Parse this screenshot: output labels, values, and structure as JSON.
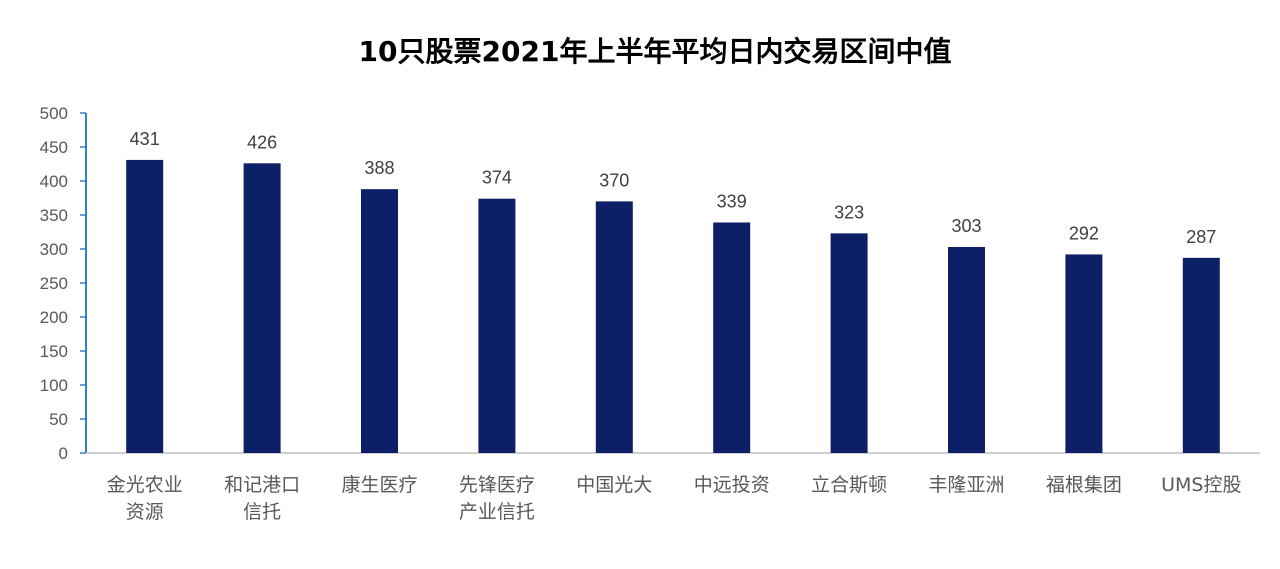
{
  "chart_data": {
    "type": "bar",
    "title": "10只股票2021年上半年平均日内交易区间中值",
    "xlabel": "",
    "ylabel": "",
    "categories": [
      [
        "金光农业",
        "资源"
      ],
      [
        "和记港口",
        "信托"
      ],
      [
        "康生医疗"
      ],
      [
        "先锋医疗",
        "产业信托"
      ],
      [
        "中国光大"
      ],
      [
        "中远投资"
      ],
      [
        "立合斯顿"
      ],
      [
        "丰隆亚洲"
      ],
      [
        "福根集团"
      ],
      [
        "UMS控股"
      ]
    ],
    "values": [
      431,
      426,
      388,
      374,
      370,
      339,
      323,
      303,
      292,
      287
    ],
    "ylim": [
      0,
      500
    ],
    "yticks": [
      0,
      50,
      100,
      150,
      200,
      250,
      300,
      350,
      400,
      450,
      500
    ],
    "grid": false,
    "legend": "none",
    "bar_color": "#0D1F66",
    "axis_color": "#3F7CC8"
  }
}
